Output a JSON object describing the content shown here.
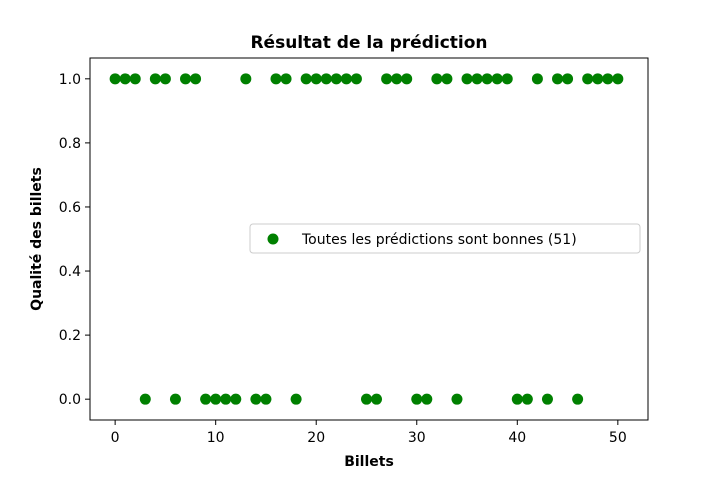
{
  "chart_data": {
    "type": "scatter",
    "title": "Résultat de la prédiction",
    "xlabel": "Billets",
    "ylabel": "Qualité des billets",
    "xlim": [
      -2.5,
      53
    ],
    "ylim": [
      -0.065,
      1.065
    ],
    "xticks": [
      0,
      10,
      20,
      30,
      40,
      50
    ],
    "yticks": [
      0.0,
      0.2,
      0.4,
      0.6,
      0.8,
      1.0
    ],
    "xtick_labels": [
      "0",
      "10",
      "20",
      "30",
      "40",
      "50"
    ],
    "ytick_labels": [
      "0.0",
      "0.2",
      "0.4",
      "0.6",
      "0.8",
      "1.0"
    ],
    "grid": false,
    "legend": {
      "position": "center-right"
    },
    "series": [
      {
        "name": "Toutes les prédictions sont bonnes (51)",
        "color": "#008000",
        "x": [
          0,
          1,
          2,
          3,
          4,
          5,
          6,
          7,
          8,
          9,
          10,
          11,
          12,
          13,
          14,
          15,
          16,
          17,
          18,
          19,
          20,
          21,
          22,
          23,
          24,
          25,
          26,
          27,
          28,
          29,
          30,
          31,
          32,
          33,
          34,
          35,
          36,
          37,
          38,
          39,
          40,
          41,
          42,
          43,
          44,
          45,
          46,
          47,
          48,
          49,
          50
        ],
        "y": [
          1,
          1,
          1,
          0,
          1,
          1,
          0,
          1,
          1,
          0,
          0,
          0,
          0,
          1,
          0,
          0,
          1,
          1,
          0,
          1,
          1,
          1,
          1,
          1,
          1,
          0,
          0,
          1,
          1,
          1,
          0,
          0,
          1,
          1,
          0,
          1,
          1,
          1,
          1,
          1,
          0,
          0,
          1,
          0,
          1,
          1,
          0,
          1,
          1,
          1,
          1
        ]
      }
    ]
  }
}
